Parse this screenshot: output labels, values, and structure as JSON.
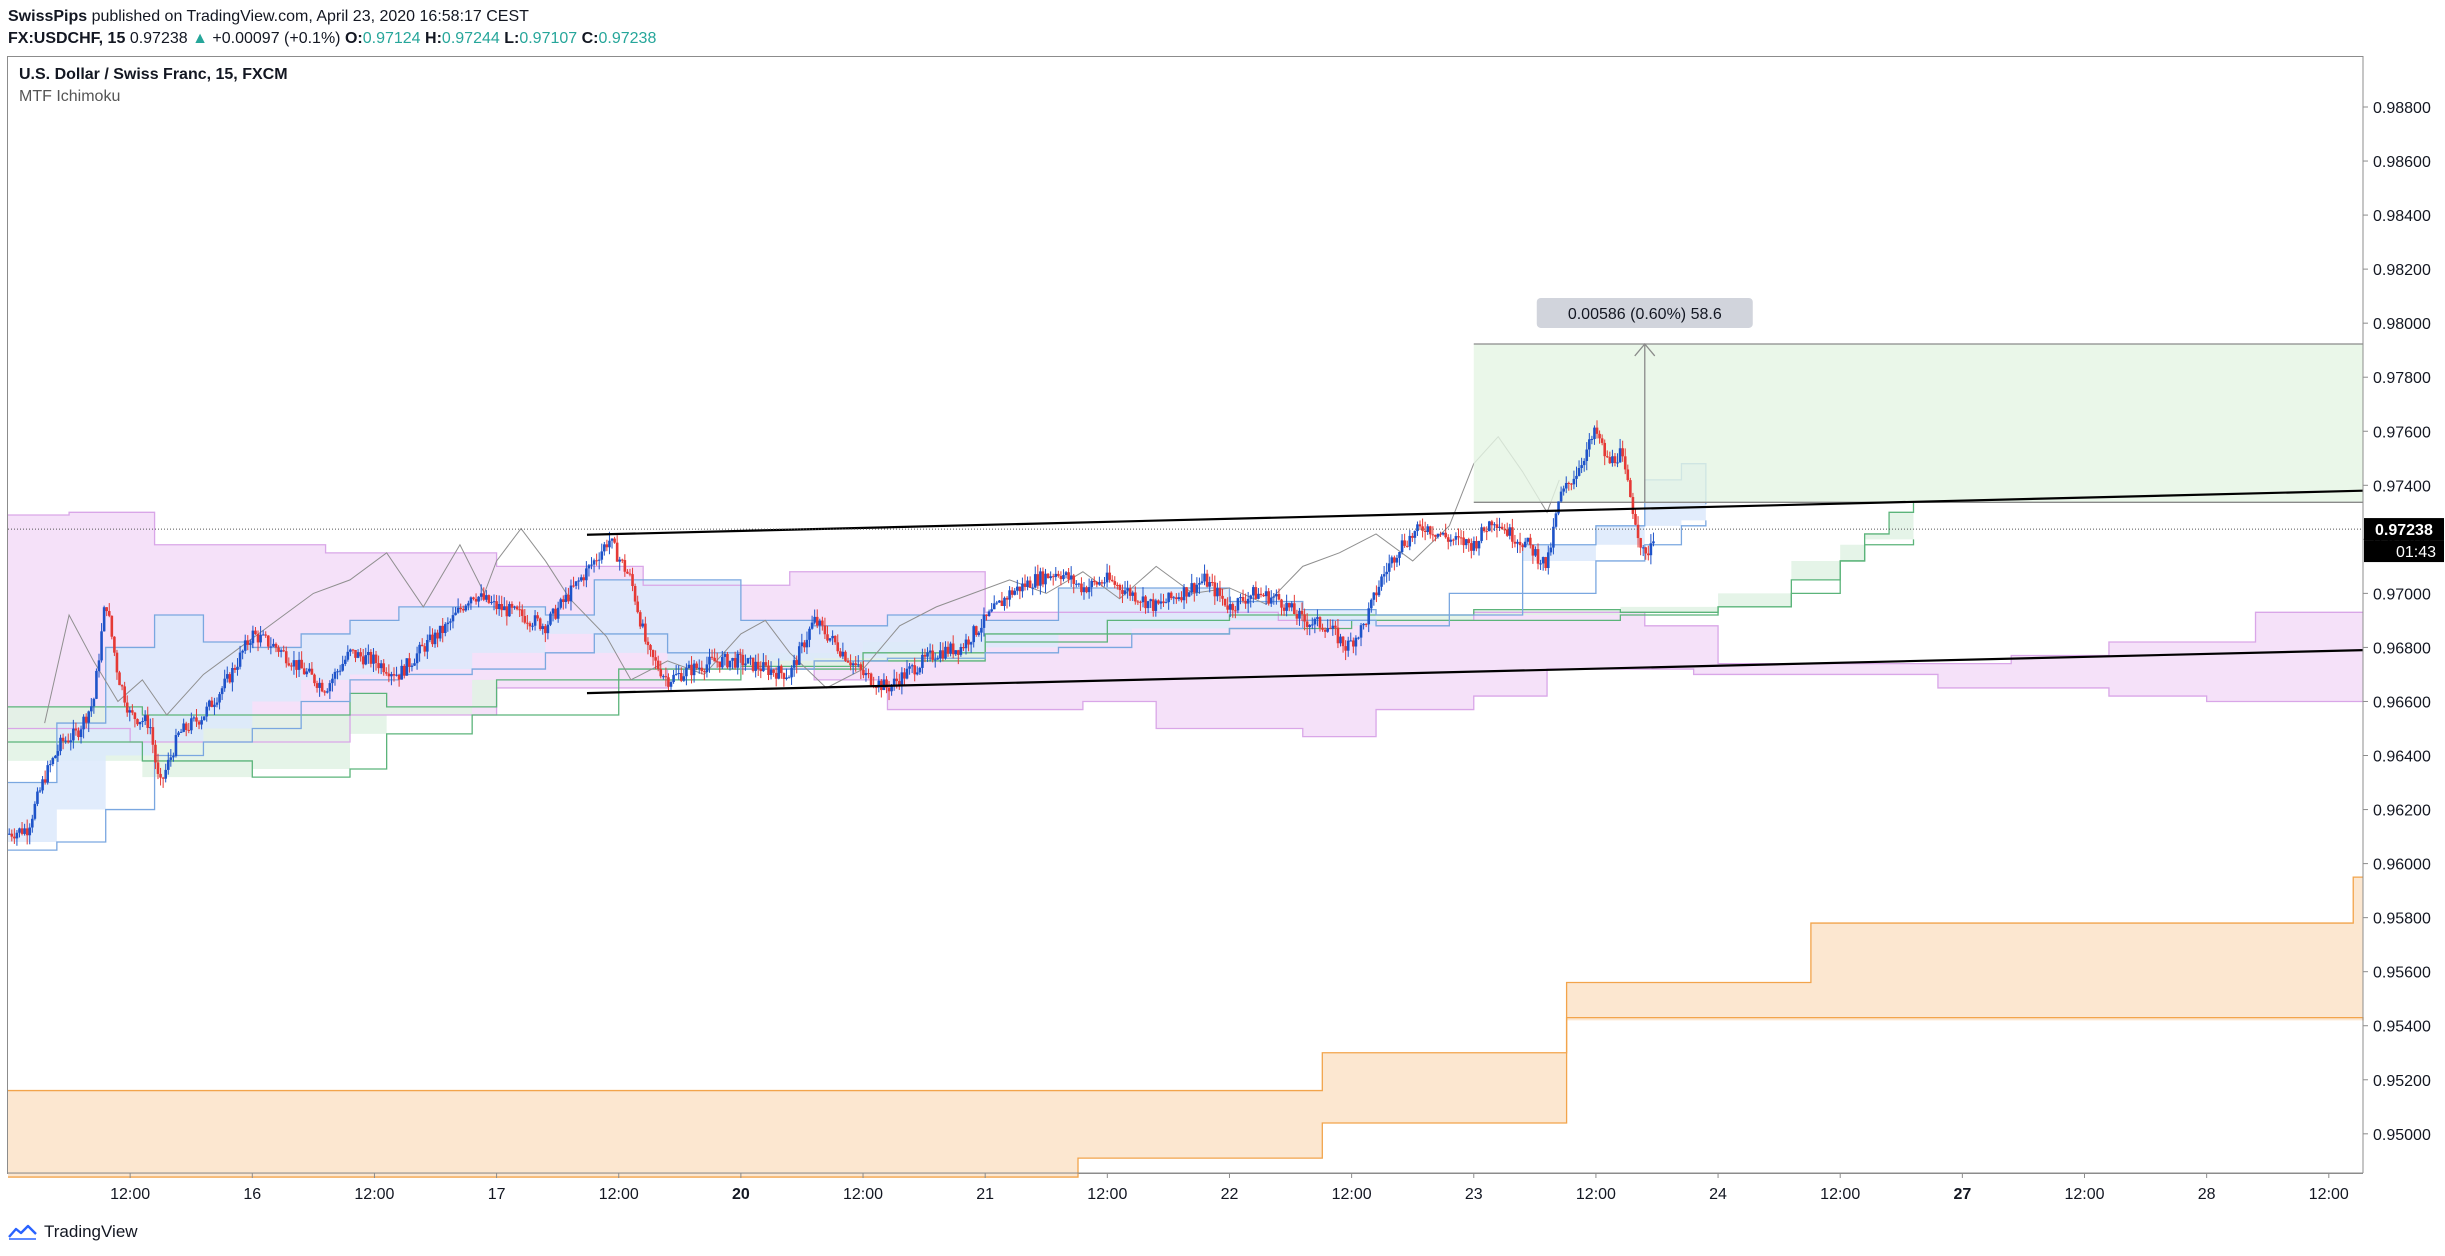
{
  "header": {
    "author": "SwissPips",
    "published": " published on TradingView.com, April 23, 2020 16:58:17 CEST",
    "symbol": "FX:USDCHF, 15",
    "last": "0.97238",
    "arrow": "▲",
    "change": "+0.00097 (+0.1%)",
    "o_label": "O:",
    "o": "0.97124",
    "h_label": "H:",
    "h": "0.97244",
    "l_label": "L:",
    "l": "0.97107",
    "c_label": "C:",
    "c": "0.97238"
  },
  "legend": {
    "title": "U.S. Dollar / Swiss Franc, 15, FXCM",
    "indicator": "MTF Ichimoku"
  },
  "footer": {
    "brand": "TradingView"
  },
  "chart_data": {
    "type": "candlestick",
    "title": "U.S. Dollar / Swiss Franc, 15, FXCM",
    "ylim": [
      0.94855,
      0.98985
    ],
    "y_ticks": [
      "0.98800",
      "0.98600",
      "0.98400",
      "0.98200",
      "0.98000",
      "0.97800",
      "0.97600",
      "0.97400",
      "0.97200",
      "0.97000",
      "0.96800",
      "0.96600",
      "0.96400",
      "0.96200",
      "0.96000",
      "0.95800",
      "0.95600",
      "0.95400",
      "0.95200",
      "0.95000"
    ],
    "x_ticks": [
      {
        "label": "12:00",
        "t": 0.5,
        "bold": false
      },
      {
        "label": "16",
        "t": 1.0,
        "bold": false
      },
      {
        "label": "12:00",
        "t": 1.5,
        "bold": false
      },
      {
        "label": "17",
        "t": 2.0,
        "bold": false
      },
      {
        "label": "12:00",
        "t": 2.5,
        "bold": false
      },
      {
        "label": "20",
        "t": 3.0,
        "bold": true
      },
      {
        "label": "12:00",
        "t": 3.5,
        "bold": false
      },
      {
        "label": "21",
        "t": 4.0,
        "bold": false
      },
      {
        "label": "12:00",
        "t": 4.5,
        "bold": false
      },
      {
        "label": "22",
        "t": 5.0,
        "bold": false
      },
      {
        "label": "12:00",
        "t": 5.5,
        "bold": false
      },
      {
        "label": "23",
        "t": 6.0,
        "bold": false
      },
      {
        "label": "12:00",
        "t": 6.5,
        "bold": false
      },
      {
        "label": "24",
        "t": 7.0,
        "bold": false
      },
      {
        "label": "12:00",
        "t": 7.5,
        "bold": false
      },
      {
        "label": "27",
        "t": 8.0,
        "bold": true
      },
      {
        "label": "12:00",
        "t": 8.5,
        "bold": false
      },
      {
        "label": "28",
        "t": 9.0,
        "bold": false
      },
      {
        "label": "12:00",
        "t": 9.5,
        "bold": false
      }
    ],
    "x_domain": [
      0.0,
      9.64
    ],
    "price_path": [
      [
        0.0,
        0.9611
      ],
      [
        0.08,
        0.9613
      ],
      [
        0.15,
        0.9632
      ],
      [
        0.22,
        0.9645
      ],
      [
        0.28,
        0.9648
      ],
      [
        0.35,
        0.966
      ],
      [
        0.4,
        0.9698
      ],
      [
        0.45,
        0.967
      ],
      [
        0.5,
        0.9655
      ],
      [
        0.58,
        0.9652
      ],
      [
        0.62,
        0.9628
      ],
      [
        0.7,
        0.9648
      ],
      [
        0.8,
        0.9655
      ],
      [
        0.9,
        0.9668
      ],
      [
        1.0,
        0.9685
      ],
      [
        1.1,
        0.968
      ],
      [
        1.2,
        0.9672
      ],
      [
        1.3,
        0.9665
      ],
      [
        1.4,
        0.9678
      ],
      [
        1.5,
        0.9675
      ],
      [
        1.6,
        0.967
      ],
      [
        1.7,
        0.968
      ],
      [
        1.8,
        0.9688
      ],
      [
        1.9,
        0.97
      ],
      [
        2.0,
        0.9695
      ],
      [
        2.1,
        0.9692
      ],
      [
        2.2,
        0.9688
      ],
      [
        2.3,
        0.97
      ],
      [
        2.4,
        0.9712
      ],
      [
        2.46,
        0.972
      ],
      [
        2.55,
        0.9705
      ],
      [
        2.62,
        0.9678
      ],
      [
        2.7,
        0.9668
      ],
      [
        2.8,
        0.9672
      ],
      [
        2.9,
        0.9675
      ],
      [
        3.0,
        0.9675
      ],
      [
        3.1,
        0.9672
      ],
      [
        3.2,
        0.967
      ],
      [
        3.3,
        0.969
      ],
      [
        3.4,
        0.968
      ],
      [
        3.5,
        0.967
      ],
      [
        3.6,
        0.9665
      ],
      [
        3.7,
        0.9672
      ],
      [
        3.8,
        0.9678
      ],
      [
        3.9,
        0.968
      ],
      [
        4.0,
        0.969
      ],
      [
        4.1,
        0.97
      ],
      [
        4.2,
        0.9705
      ],
      [
        4.3,
        0.9708
      ],
      [
        4.4,
        0.9702
      ],
      [
        4.5,
        0.9705
      ],
      [
        4.6,
        0.97
      ],
      [
        4.7,
        0.9695
      ],
      [
        4.8,
        0.97
      ],
      [
        4.9,
        0.9705
      ],
      [
        5.0,
        0.9695
      ],
      [
        5.1,
        0.97
      ],
      [
        5.2,
        0.9698
      ],
      [
        5.3,
        0.969
      ],
      [
        5.4,
        0.9688
      ],
      [
        5.48,
        0.968
      ],
      [
        5.55,
        0.9688
      ],
      [
        5.62,
        0.9705
      ],
      [
        5.7,
        0.9718
      ],
      [
        5.8,
        0.9725
      ],
      [
        5.9,
        0.972
      ],
      [
        6.0,
        0.9718
      ],
      [
        6.08,
        0.9728
      ],
      [
        6.15,
        0.9722
      ],
      [
        6.22,
        0.9718
      ],
      [
        6.3,
        0.971
      ],
      [
        6.35,
        0.9735
      ],
      [
        6.42,
        0.9745
      ],
      [
        6.5,
        0.976
      ],
      [
        6.55,
        0.9748
      ],
      [
        6.6,
        0.9752
      ],
      [
        6.66,
        0.9728
      ],
      [
        6.7,
        0.9712
      ],
      [
        6.74,
        0.9723
      ]
    ],
    "trendlines": [
      {
        "x": [
          2.37,
          9.64
        ],
        "y": [
          0.97217,
          0.9738
        ]
      },
      {
        "x": [
          2.37,
          9.64
        ],
        "y": [
          0.96631,
          0.9679
        ]
      }
    ],
    "current_price": "0.97238",
    "countdown": "01:43",
    "measure": {
      "label": "0.00586 (0.60%) 58.6",
      "x_range": [
        6.0,
        9.64
      ],
      "y_from": 0.97337,
      "y_to": 0.97923,
      "fill": "#e5f5e3"
    },
    "clouds": [
      {
        "name": "kumo-purple",
        "color": "#d9a6e8",
        "fill": "#f3dcf8"
      },
      {
        "name": "kumo-blue",
        "color": "#7aa7e0",
        "fill": "#dce9fb"
      },
      {
        "name": "kumo-green",
        "color": "#5bb47a",
        "fill": "#e0f2e4"
      },
      {
        "name": "kumo-orange",
        "color": "#f2a44b",
        "fill": "#fbe3c8"
      }
    ],
    "colors": {
      "up": "#1e53c9",
      "down": "#e53935",
      "trendline": "#000000",
      "grid_dotted": "#555555"
    }
  }
}
